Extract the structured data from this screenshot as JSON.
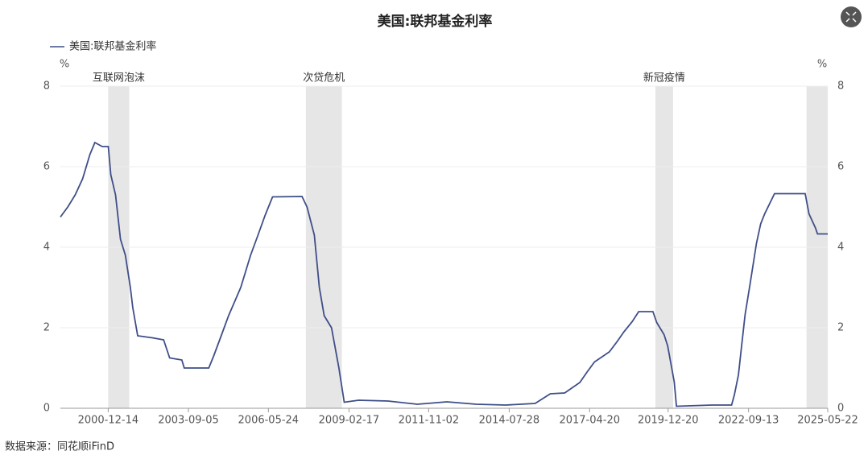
{
  "chart_data": {
    "type": "line",
    "title": "美国:联邦基金利率",
    "y_unit": "%",
    "y2_unit": "%",
    "x": [
      "1999-05-01",
      "1999-08-01",
      "1999-11-01",
      "2000-02-01",
      "2000-05-01",
      "2000-07-01",
      "2000-10-01",
      "2000-12-15",
      "2001-01-15",
      "2001-03-15",
      "2001-05-15",
      "2001-07-15",
      "2001-09-15",
      "2001-10-15",
      "2001-12-15",
      "2002-06-15",
      "2002-11-01",
      "2003-01-15",
      "2003-06-15",
      "2003-07-15",
      "2004-05-15",
      "2004-07-15",
      "2004-10-15",
      "2005-01-15",
      "2005-06-15",
      "2005-10-15",
      "2006-01-15",
      "2006-04-15",
      "2006-07-15",
      "2007-07-15",
      "2007-09-15",
      "2007-12-15",
      "2008-02-15",
      "2008-04-15",
      "2008-07-15",
      "2008-10-15",
      "2008-12-20",
      "2009-06-15",
      "2010-06-15",
      "2011-06-15",
      "2012-06-15",
      "2013-06-15",
      "2014-06-15",
      "2015-06-15",
      "2015-12-20",
      "2016-06-15",
      "2016-12-20",
      "2017-03-20",
      "2017-06-20",
      "2017-12-20",
      "2018-03-25",
      "2018-06-20",
      "2018-09-30",
      "2018-12-20",
      "2019-06-15",
      "2019-08-01",
      "2019-10-31",
      "2019-12-15",
      "2020-03-05",
      "2020-04-01",
      "2021-06-15",
      "2022-02-15",
      "2022-03-20",
      "2022-05-10",
      "2022-06-20",
      "2022-08-01",
      "2022-10-01",
      "2022-12-20",
      "2023-02-10",
      "2023-04-01",
      "2023-06-01",
      "2023-08-01",
      "2024-08-15",
      "2024-10-01",
      "2024-12-20",
      "2025-01-15",
      "2025-05-22"
    ],
    "series": [
      {
        "name": "美国:联邦基金利率",
        "color": "#3f4e88",
        "values": [
          4.75,
          5.0,
          5.3,
          5.7,
          6.3,
          6.6,
          6.5,
          6.5,
          5.8,
          5.3,
          4.2,
          3.8,
          3.0,
          2.5,
          1.8,
          1.75,
          1.7,
          1.25,
          1.2,
          1.0,
          1.0,
          1.3,
          1.8,
          2.3,
          3.0,
          3.8,
          4.3,
          4.8,
          5.25,
          5.26,
          5.0,
          4.3,
          3.0,
          2.3,
          2.0,
          1.0,
          0.15,
          0.2,
          0.18,
          0.1,
          0.16,
          0.1,
          0.08,
          0.12,
          0.36,
          0.38,
          0.64,
          0.9,
          1.15,
          1.4,
          1.65,
          1.9,
          2.15,
          2.4,
          2.4,
          2.13,
          1.83,
          1.55,
          0.65,
          0.05,
          0.08,
          0.08,
          0.33,
          0.83,
          1.58,
          2.33,
          3.08,
          4.1,
          4.58,
          4.83,
          5.08,
          5.33,
          5.33,
          4.83,
          4.48,
          4.33,
          4.33
        ]
      }
    ],
    "xlim": [
      "1999-05-01",
      "2025-05-22"
    ],
    "xticks": [
      "2000-12-14",
      "2003-09-05",
      "2006-05-24",
      "2009-02-17",
      "2011-11-02",
      "2014-07-28",
      "2017-04-20",
      "2019-12-20",
      "2022-09-13",
      "2025-05-22"
    ],
    "ylim": [
      0,
      8
    ],
    "yticks": [
      0,
      2,
      4,
      6,
      8
    ],
    "y2lim": [
      0,
      8
    ],
    "y2ticks": [
      0,
      2,
      4,
      6,
      8
    ],
    "grid": true,
    "shaded_regions": [
      {
        "label": "互联网泡沫",
        "start": "2000-12-14",
        "end": "2001-09-01"
      },
      {
        "label": "次贷危机",
        "start": "2007-09-01",
        "end": "2008-11-20"
      },
      {
        "label": "新冠疫情",
        "start": "2019-07-15",
        "end": "2020-02-20"
      },
      {
        "start": "2024-09-01",
        "end": "2025-05-22"
      }
    ],
    "source": "数据来源：同花顺iFinD"
  }
}
